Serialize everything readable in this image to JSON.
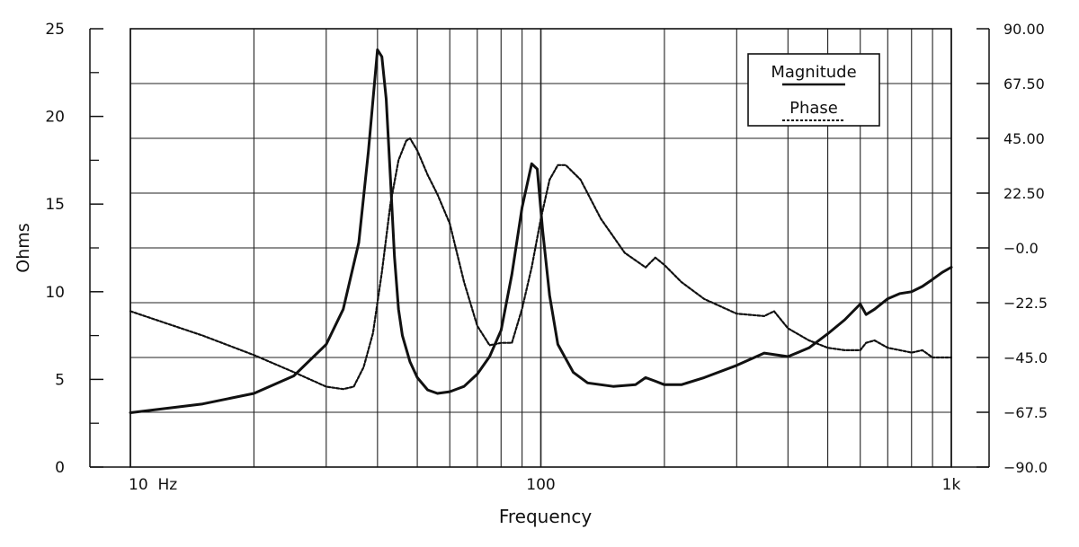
{
  "chart_data": {
    "type": "line",
    "xlabel": "Frequency",
    "x_scale": "log",
    "xlim": [
      10,
      1000
    ],
    "x_tick_labels": [
      {
        "value": 10,
        "label": "10  Hz"
      },
      {
        "value": 100,
        "label": "100"
      },
      {
        "value": 1000,
        "label": "1k"
      }
    ],
    "ylabel_left": "Ohms",
    "ylim_left": [
      0,
      25
    ],
    "y_ticks_left": [
      "0",
      "5",
      "10",
      "15",
      "20",
      "25"
    ],
    "ylim_right": [
      -90,
      90
    ],
    "y_ticks_right": [
      "−90.0",
      "−67.5",
      "−45.0",
      "−22.5",
      "−0.0",
      "22.50",
      "45.00",
      "67.50",
      "90.00"
    ],
    "grid": true,
    "legend": {
      "placement": "top-right",
      "entries": [
        {
          "name": "Magnitude",
          "style": "solid"
        },
        {
          "name": "Phase",
          "style": "dashed"
        }
      ]
    },
    "series": [
      {
        "name": "Magnitude",
        "axis": "left",
        "style": "solid",
        "x": [
          10,
          15,
          20,
          25,
          30,
          33,
          36,
          38,
          40,
          41,
          42,
          43,
          44,
          45,
          46,
          48,
          50,
          53,
          56,
          60,
          65,
          70,
          75,
          80,
          85,
          90,
          95,
          98,
          101,
          105,
          110,
          120,
          130,
          150,
          170,
          180,
          190,
          200,
          220,
          250,
          300,
          350,
          400,
          450,
          500,
          550,
          600,
          620,
          650,
          700,
          750,
          800,
          850,
          900,
          950,
          1000
        ],
        "y": [
          3.1,
          3.6,
          4.2,
          5.2,
          7.0,
          9.0,
          12.8,
          18.0,
          23.8,
          23.4,
          21.0,
          16.5,
          12.0,
          9.0,
          7.5,
          6.0,
          5.1,
          4.4,
          4.2,
          4.3,
          4.6,
          5.3,
          6.3,
          7.8,
          11.0,
          14.8,
          17.3,
          17.0,
          13.5,
          9.8,
          7.0,
          5.4,
          4.8,
          4.6,
          4.7,
          5.1,
          4.9,
          4.7,
          4.7,
          5.1,
          5.8,
          6.5,
          6.3,
          6.8,
          7.6,
          8.4,
          9.3,
          8.7,
          9.0,
          9.6,
          9.9,
          10.0,
          10.3,
          10.7,
          11.1,
          11.4
        ]
      },
      {
        "name": "Phase",
        "axis": "right",
        "style": "dashed",
        "x": [
          10,
          15,
          20,
          25,
          30,
          33,
          35,
          37,
          39,
          41,
          43,
          45,
          47,
          48,
          50,
          53,
          56,
          60,
          65,
          70,
          75,
          80,
          85,
          90,
          95,
          100,
          105,
          110,
          115,
          125,
          140,
          160,
          180,
          190,
          200,
          220,
          250,
          300,
          350,
          370,
          400,
          450,
          500,
          550,
          600,
          620,
          650,
          700,
          750,
          800,
          850,
          900,
          1000
        ],
        "y": [
          -26,
          -36,
          -44,
          -51,
          -57,
          -58,
          -57,
          -49,
          -35,
          -10,
          18,
          36,
          44,
          45,
          40,
          30,
          22,
          10,
          -14,
          -32,
          -40,
          -39,
          -39,
          -25,
          -8,
          12,
          28,
          34,
          34,
          28,
          12,
          -2,
          -8,
          -4,
          -7,
          -14,
          -21,
          -27,
          -28,
          -26,
          -33,
          -38,
          -41,
          -42,
          -42,
          -39,
          -38,
          -41,
          -42,
          -43,
          -42,
          -45,
          -45
        ]
      }
    ]
  }
}
